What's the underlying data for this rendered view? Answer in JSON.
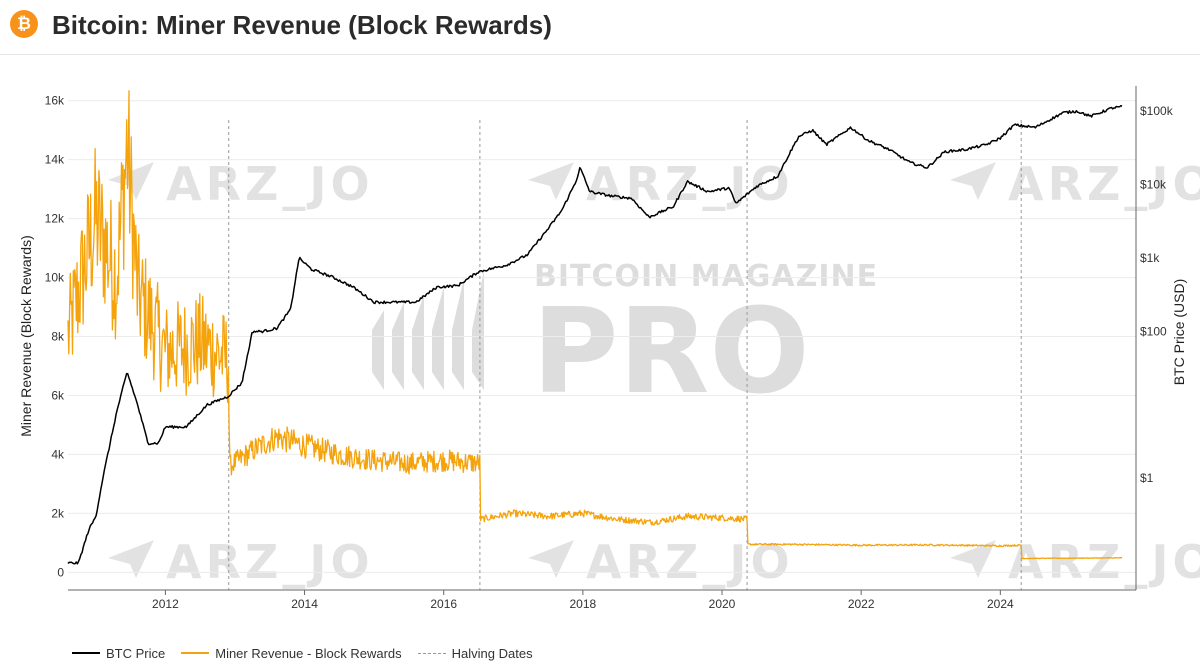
{
  "header": {
    "title": "Bitcoin: Miner Revenue (Block Rewards)",
    "logo_glyph": "₿",
    "logo_color": "#f7931a"
  },
  "watermarks": {
    "brand_line1": "BITCOIN MAGAZINE",
    "brand_line2": "PRO",
    "handle": "ARZ_JO"
  },
  "legend": [
    {
      "label": "BTC Price",
      "color": "#000000",
      "style": "solid"
    },
    {
      "label": "Miner Revenue - Block Rewards",
      "color": "#f5a30d",
      "style": "solid"
    },
    {
      "label": "Halving Dates",
      "color": "#999999",
      "style": "dashed"
    }
  ],
  "chart_data": {
    "type": "line",
    "title": "Bitcoin: Miner Revenue (Block Rewards)",
    "xlabel": "",
    "ylabel_left": "Miner Revenue (Block Rewards)",
    "ylabel_right": "BTC Price (USD)",
    "xlim": [
      2010.6,
      2025.95
    ],
    "ylim_left": [
      -600,
      16500
    ],
    "ylim_right_log": [
      0.03,
      220000
    ],
    "right_scale": "log",
    "x_ticks": [
      2012,
      2014,
      2016,
      2018,
      2020,
      2022,
      2024
    ],
    "x_tick_labels": [
      "2012",
      "2014",
      "2016",
      "2018",
      "2020",
      "2022",
      "2024"
    ],
    "y_left_ticks": [
      0,
      2000,
      4000,
      6000,
      8000,
      10000,
      12000,
      14000,
      16000
    ],
    "y_left_tick_labels": [
      "0",
      "2k",
      "4k",
      "6k",
      "8k",
      "10k",
      "12k",
      "14k",
      "16k"
    ],
    "y_right_ticks": [
      1,
      100,
      1000,
      10000,
      100000
    ],
    "y_right_tick_labels": [
      "$1",
      "$100",
      "$1k",
      "$10k",
      "$100k"
    ],
    "grid": true,
    "halving_dates": [
      2012.91,
      2016.52,
      2020.36,
      2024.3
    ],
    "series": [
      {
        "name": "BTC Price",
        "color": "#000000",
        "axis": "right",
        "x": [
          2010.6,
          2010.75,
          2010.9,
          2011.0,
          2011.1,
          2011.3,
          2011.45,
          2011.6,
          2011.75,
          2011.9,
          2012.0,
          2012.3,
          2012.6,
          2012.9,
          2013.1,
          2013.25,
          2013.4,
          2013.6,
          2013.8,
          2013.92,
          2014.1,
          2014.4,
          2014.7,
          2015.0,
          2015.3,
          2015.6,
          2015.9,
          2016.2,
          2016.5,
          2016.9,
          2017.2,
          2017.5,
          2017.7,
          2017.9,
          2017.96,
          2018.1,
          2018.4,
          2018.7,
          2018.95,
          2019.3,
          2019.5,
          2019.8,
          2020.1,
          2020.2,
          2020.5,
          2020.8,
          2021.0,
          2021.1,
          2021.3,
          2021.5,
          2021.85,
          2022.1,
          2022.4,
          2022.7,
          2022.95,
          2023.2,
          2023.5,
          2023.8,
          2024.0,
          2024.2,
          2024.5,
          2024.9,
          2025.1,
          2025.3,
          2025.6,
          2025.75
        ],
        "y": [
          0.07,
          0.07,
          0.2,
          0.3,
          1,
          8,
          28,
          10,
          3,
          3,
          5,
          5,
          10,
          13,
          20,
          100,
          100,
          110,
          200,
          1000,
          700,
          550,
          400,
          250,
          250,
          250,
          400,
          420,
          650,
          800,
          1100,
          2500,
          4500,
          11000,
          17000,
          8000,
          7000,
          6500,
          3600,
          5000,
          11000,
          8000,
          9000,
          5500,
          9500,
          13000,
          30000,
          45000,
          55000,
          35000,
          60000,
          40000,
          30000,
          20000,
          17000,
          28000,
          30000,
          35000,
          43000,
          65000,
          60000,
          95000,
          100000,
          85000,
          110000,
          115000
        ]
      },
      {
        "name": "Miner Revenue - Block Rewards",
        "color": "#f5a30d",
        "axis": "left",
        "x": [
          2010.6,
          2011.0,
          2011.3,
          2011.45,
          2011.6,
          2012.0,
          2012.5,
          2012.91,
          2012.92,
          2013.3,
          2013.6,
          2014.0,
          2014.5,
          2015.0,
          2015.5,
          2016.0,
          2016.52,
          2016.53,
          2017.0,
          2017.5,
          2018.0,
          2018.5,
          2019.0,
          2019.5,
          2020.0,
          2020.36,
          2020.37,
          2021.0,
          2022.0,
          2023.0,
          2024.0,
          2024.3,
          2024.31,
          2025.0,
          2025.75
        ],
        "y": [
          8000,
          12000,
          10000,
          14500,
          9500,
          7500,
          7800,
          7200,
          3600,
          4200,
          4600,
          4300,
          4000,
          3800,
          3700,
          3800,
          3700,
          1800,
          2000,
          1900,
          2000,
          1800,
          1700,
          1900,
          1850,
          1800,
          950,
          950,
          920,
          930,
          900,
          920,
          470,
          480,
          490
        ]
      }
    ]
  }
}
